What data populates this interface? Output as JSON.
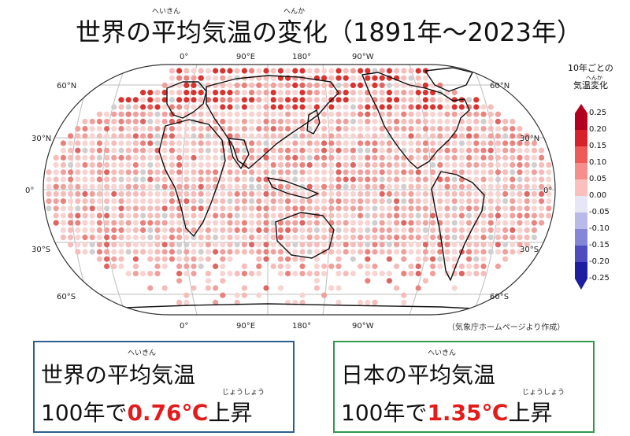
{
  "title": {
    "text": "世界の平均気温の変化（1891年～2023年）",
    "ruby_heikin": "へいきん",
    "ruby_henka": "へんか"
  },
  "map": {
    "lon_labels": [
      "0°",
      "90°E",
      "180°",
      "90°W"
    ],
    "lat_labels": [
      "60°N",
      "30°N",
      "0°",
      "30°S",
      "60°S"
    ]
  },
  "colorbar": {
    "title_line1": "10年ごとの",
    "title_line2": "気温変化",
    "ruby": "へんか",
    "ticks": [
      "0.25",
      "0.20",
      "0.15",
      "0.10",
      "0.05",
      "0.00",
      "-0.05",
      "-0.10",
      "-0.15",
      "-0.20",
      "-0.25"
    ],
    "colors": [
      "#b2001e",
      "#d8222b",
      "#ee5a57",
      "#f68f8b",
      "#fbc0bd",
      "#fce6e5",
      "#e6e6f7",
      "#b9b9ea",
      "#8686d8",
      "#4d4dc0",
      "#1e1ea0"
    ]
  },
  "source": "（気象庁ホームページより作成）",
  "world_box": {
    "line1": "世界の平均気温",
    "ruby_heikin": "へいきん",
    "line2_prefix": "100年で",
    "value": "0.76℃",
    "line2_suffix": "上昇",
    "ruby_joushou": "じょうしょう"
  },
  "japan_box": {
    "line1": "日本の平均気温",
    "ruby_heikin": "へいきん",
    "line2_prefix": "100年で",
    "value": "1.35℃",
    "line2_suffix": "上昇",
    "ruby_joushou": "じょうしょう"
  }
}
